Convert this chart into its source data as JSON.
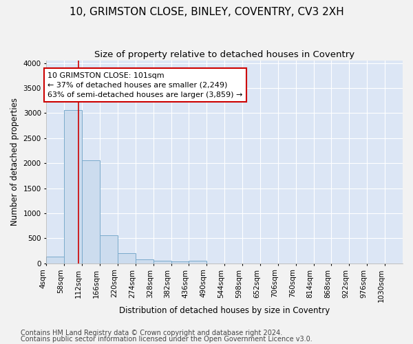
{
  "title_line1": "10, GRIMSTON CLOSE, BINLEY, COVENTRY, CV3 2XH",
  "title_line2": "Size of property relative to detached houses in Coventry",
  "xlabel": "Distribution of detached houses by size in Coventry",
  "ylabel": "Number of detached properties",
  "bar_color": "#ccdcee",
  "bar_edge_color": "#7aaacb",
  "background_color": "#dce6f5",
  "grid_color": "#ffffff",
  "property_line_x": 101,
  "property_line_color": "#cc0000",
  "annotation_text": "10 GRIMSTON CLOSE: 101sqm\n← 37% of detached houses are smaller (2,249)\n63% of semi-detached houses are larger (3,859) →",
  "annotation_box_facecolor": "#ffffff",
  "annotation_box_edgecolor": "#cc0000",
  "bin_edges": [
    4,
    58,
    112,
    166,
    220,
    274,
    328,
    382,
    436,
    490,
    544,
    598,
    652,
    706,
    760,
    814,
    868,
    922,
    976,
    1030,
    1084
  ],
  "bin_counts": [
    130,
    3060,
    2060,
    560,
    200,
    80,
    55,
    40,
    50,
    0,
    0,
    0,
    0,
    0,
    0,
    0,
    0,
    0,
    0,
    0
  ],
  "ylim": [
    0,
    4050
  ],
  "yticks": [
    0,
    500,
    1000,
    1500,
    2000,
    2500,
    3000,
    3500,
    4000
  ],
  "footer_line1": "Contains HM Land Registry data © Crown copyright and database right 2024.",
  "footer_line2": "Contains public sector information licensed under the Open Government Licence v3.0.",
  "title_fontsize": 11,
  "subtitle_fontsize": 9.5,
  "label_fontsize": 8.5,
  "tick_fontsize": 7.5,
  "footer_fontsize": 7,
  "annot_fontsize": 8
}
